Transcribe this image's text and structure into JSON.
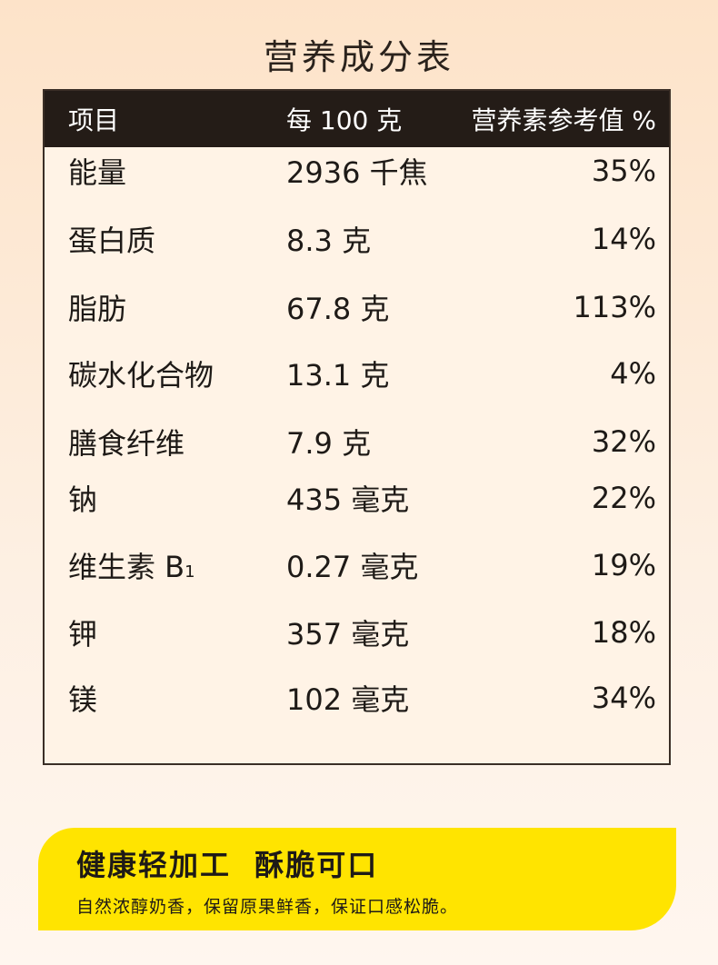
{
  "title": "营养成分表",
  "table": {
    "headers": [
      "项目",
      "每 100 克",
      "营养素参考值 %"
    ],
    "rows": [
      [
        "能量",
        "2936 千焦",
        "35%"
      ],
      [
        "蛋白质",
        "8.3 克",
        "14%"
      ],
      [
        "脂肪",
        "67.8 克",
        "113%"
      ],
      [
        "碳水化合物",
        "13.1 克",
        "4%"
      ],
      [
        "膳食纤维",
        "7.9 克",
        "32%"
      ],
      [
        "钠",
        "435 毫克",
        "22%"
      ],
      [
        "维生素 B",
        "0.27 毫克",
        "19%"
      ],
      [
        "钾",
        "357 毫克",
        "18%"
      ],
      [
        "镁",
        "102 毫克",
        "34%"
      ]
    ],
    "vitamin_subscript": "1"
  },
  "banner": {
    "headline": "健康轻加工  酥脆可口",
    "subtext": "自然浓醇奶香，保留原果鲜香，保证口感松脆。",
    "color": "#ffe400"
  }
}
